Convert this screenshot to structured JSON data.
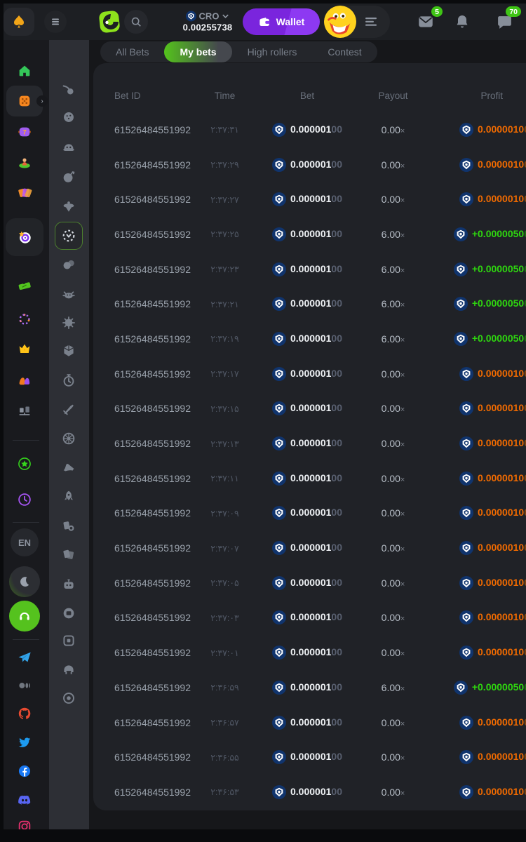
{
  "header": {
    "currency": "CRO",
    "balance": "0.00255738",
    "wallet_label": "Wallet",
    "mail_badge": "5",
    "chat_badge": "70",
    "language_label": "EN"
  },
  "tabs": [
    {
      "label": "All Bets",
      "active": false
    },
    {
      "label": "My bets",
      "active": true
    },
    {
      "label": "High rollers",
      "active": false
    },
    {
      "label": "Contest",
      "active": false
    }
  ],
  "sidebar_primary": [
    "home",
    "casino",
    "slots",
    "live-casino",
    "promotions",
    "bonus-dart",
    "lottery",
    "ring",
    "vip",
    "affiliate",
    "trading",
    "bonus-star",
    "recent",
    "language",
    "theme-toggle",
    "support",
    "telegram",
    "medium",
    "github",
    "twitter",
    "facebook",
    "discord",
    "instagram"
  ],
  "sidebar_games": [
    "crash",
    "plinko",
    "monster",
    "bomb",
    "spinner",
    "limbo",
    "coinflip",
    "crab",
    "keno",
    "dice-cube",
    "stopwatch",
    "sword",
    "wheel",
    "hat",
    "rocket",
    "poker-chip",
    "cards",
    "robot",
    "slot",
    "box",
    "helmet",
    "target"
  ],
  "sidebar_games_active_index": 5,
  "table": {
    "headers": [
      "Bet ID",
      "Time",
      "Bet",
      "Payout",
      "Profit"
    ],
    "bet_main": "0.000001",
    "bet_fade": "00",
    "rows": [
      {
        "bet_id": "61526484551992",
        "time": "۲:۳۷:۳۱",
        "payout": "0.00",
        "profit": "0.0000010",
        "profit_fade": "0",
        "win": false
      },
      {
        "bet_id": "61526484551992",
        "time": "۲:۳۷:۲۹",
        "payout": "0.00",
        "profit": "0.0000010",
        "profit_fade": "0",
        "win": false
      },
      {
        "bet_id": "61526484551992",
        "time": "۲:۳۷:۲۷",
        "payout": "0.00",
        "profit": "0.0000010",
        "profit_fade": "0",
        "win": false
      },
      {
        "bet_id": "61526484551992",
        "time": "۲:۳۷:۲۵",
        "payout": "6.00",
        "profit": "+0.0000050",
        "profit_fade": "0",
        "win": true
      },
      {
        "bet_id": "61526484551992",
        "time": "۲:۳۷:۲۳",
        "payout": "6.00",
        "profit": "+0.0000050",
        "profit_fade": "0",
        "win": true
      },
      {
        "bet_id": "61526484551992",
        "time": "۲:۳۷:۲۱",
        "payout": "6.00",
        "profit": "+0.0000050",
        "profit_fade": "0",
        "win": true
      },
      {
        "bet_id": "61526484551992",
        "time": "۲:۳۷:۱۹",
        "payout": "6.00",
        "profit": "+0.0000050",
        "profit_fade": "0",
        "win": true
      },
      {
        "bet_id": "61526484551992",
        "time": "۲:۳۷:۱۷",
        "payout": "0.00",
        "profit": "0.0000010",
        "profit_fade": "0",
        "win": false
      },
      {
        "bet_id": "61526484551992",
        "time": "۲:۳۷:۱۵",
        "payout": "0.00",
        "profit": "0.0000010",
        "profit_fade": "0",
        "win": false
      },
      {
        "bet_id": "61526484551992",
        "time": "۲:۳۷:۱۳",
        "payout": "0.00",
        "profit": "0.0000010",
        "profit_fade": "0",
        "win": false
      },
      {
        "bet_id": "61526484551992",
        "time": "۲:۳۷:۱۱",
        "payout": "0.00",
        "profit": "0.0000010",
        "profit_fade": "0",
        "win": false
      },
      {
        "bet_id": "61526484551992",
        "time": "۲:۳۷:۰۹",
        "payout": "0.00",
        "profit": "0.0000010",
        "profit_fade": "0",
        "win": false
      },
      {
        "bet_id": "61526484551992",
        "time": "۲:۳۷:۰۷",
        "payout": "0.00",
        "profit": "0.0000010",
        "profit_fade": "0",
        "win": false
      },
      {
        "bet_id": "61526484551992",
        "time": "۲:۳۷:۰۵",
        "payout": "0.00",
        "profit": "0.0000010",
        "profit_fade": "0",
        "win": false
      },
      {
        "bet_id": "61526484551992",
        "time": "۲:۳۷:۰۳",
        "payout": "0.00",
        "profit": "0.0000010",
        "profit_fade": "0",
        "win": false
      },
      {
        "bet_id": "61526484551992",
        "time": "۲:۳۷:۰۱",
        "payout": "0.00",
        "profit": "0.0000010",
        "profit_fade": "0",
        "win": false
      },
      {
        "bet_id": "61526484551992",
        "time": "۲:۳۶:۵۹",
        "payout": "6.00",
        "profit": "+0.0000050",
        "profit_fade": "0",
        "win": true
      },
      {
        "bet_id": "61526484551992",
        "time": "۲:۳۶:۵۷",
        "payout": "0.00",
        "profit": "0.0000010",
        "profit_fade": "0",
        "win": false
      },
      {
        "bet_id": "61526484551992",
        "time": "۲:۳۶:۵۵",
        "payout": "0.00",
        "profit": "0.0000010",
        "profit_fade": "0",
        "win": false
      },
      {
        "bet_id": "61526484551992",
        "time": "۲:۳۶:۵۳",
        "payout": "0.00",
        "profit": "0.0000010",
        "profit_fade": "0",
        "win": false
      }
    ]
  },
  "colors": {
    "accent_green": "#54c31c",
    "wallet_purple": "#7f2be5",
    "badge_green": "#3fc515",
    "profit_loss_orange": "#f06a00",
    "profit_win_green": "#2ed60f",
    "cro_navy": "#10346d"
  }
}
